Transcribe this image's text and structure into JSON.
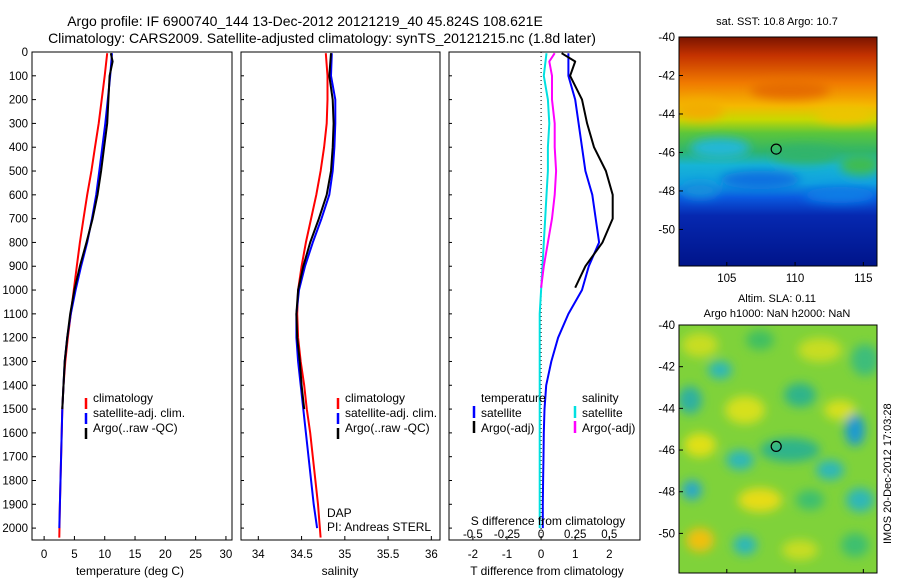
{
  "figure": {
    "title_line1": "Argo profile: IF 6900740_144 13-Dec-2012 20121219_40 45.824S 108.621E",
    "title_line2": "Climatology: CARS2009. Satellite-adjusted climatology: synTS_20121215.nc (1.8d later)",
    "side_stamp": "IMOS 20-Dec-2012 17:03:28"
  },
  "colors": {
    "climatology": "#ff0000",
    "satellite": "#0000ff",
    "argo": "#000000",
    "satellite_sal_diff": "#00e0e0",
    "argo_sal_diff": "#ff00ff"
  },
  "chart_data": [
    {
      "type": "line",
      "id": "temperature",
      "xlabel": "temperature (deg C)",
      "xlim": [
        -2,
        31
      ],
      "ylim": [
        0,
        2050
      ],
      "y_inverted": true,
      "xticks": [
        0,
        5,
        10,
        15,
        20,
        25,
        30
      ],
      "yticks": [
        0,
        100,
        200,
        300,
        400,
        500,
        600,
        700,
        800,
        900,
        1000,
        1100,
        1200,
        1300,
        1400,
        1500,
        1600,
        1700,
        1800,
        1900,
        2000
      ],
      "legend": {
        "position": "lower-right",
        "entries": [
          "climatology",
          "satellite-adj. clim.",
          "Argo(..raw -QC)"
        ]
      },
      "series": [
        {
          "name": "climatology",
          "points": [
            [
              10.4,
              5
            ],
            [
              10.0,
              100
            ],
            [
              9.5,
              200
            ],
            [
              9.0,
              300
            ],
            [
              8.4,
              400
            ],
            [
              7.8,
              500
            ],
            [
              7.1,
              600
            ],
            [
              6.5,
              700
            ],
            [
              5.9,
              800
            ],
            [
              5.4,
              900
            ],
            [
              4.9,
              1000
            ],
            [
              4.4,
              1100
            ],
            [
              3.9,
              1200
            ],
            [
              3.5,
              1300
            ],
            [
              3.2,
              1400
            ],
            [
              3.0,
              1500
            ],
            [
              2.9,
              1600
            ],
            [
              2.8,
              1700
            ],
            [
              2.7,
              1800
            ],
            [
              2.6,
              1900
            ],
            [
              2.5,
              2040
            ]
          ]
        },
        {
          "name": "satellite-adj. clim.",
          "points": [
            [
              11.2,
              5
            ],
            [
              10.9,
              100
            ],
            [
              10.5,
              200
            ],
            [
              10.1,
              300
            ],
            [
              9.6,
              400
            ],
            [
              9.1,
              500
            ],
            [
              8.6,
              600
            ],
            [
              7.9,
              700
            ],
            [
              7.1,
              800
            ],
            [
              6.1,
              900
            ],
            [
              5.2,
              1000
            ],
            [
              4.4,
              1100
            ],
            [
              3.8,
              1200
            ],
            [
              3.4,
              1300
            ],
            [
              3.2,
              1400
            ],
            [
              3.0,
              1500
            ],
            [
              2.9,
              1600
            ],
            [
              2.8,
              1700
            ],
            [
              2.7,
              1800
            ],
            [
              2.6,
              1900
            ],
            [
              2.5,
              2000
            ]
          ]
        },
        {
          "name": "Argo(..raw -QC)",
          "points": [
            [
              11.0,
              5
            ],
            [
              11.3,
              40
            ],
            [
              10.8,
              100
            ],
            [
              10.6,
              200
            ],
            [
              10.4,
              300
            ],
            [
              9.9,
              400
            ],
            [
              9.4,
              500
            ],
            [
              8.8,
              600
            ],
            [
              8.0,
              700
            ],
            [
              7.0,
              800
            ],
            [
              5.9,
              900
            ],
            [
              5.0,
              1000
            ],
            [
              4.3,
              1100
            ],
            [
              3.8,
              1200
            ],
            [
              3.4,
              1300
            ],
            [
              3.2,
              1400
            ],
            [
              3.0,
              1500
            ]
          ]
        }
      ]
    },
    {
      "type": "line",
      "id": "salinity",
      "xlabel": "salinity",
      "xlim": [
        33.8,
        36.1
      ],
      "ylim": [
        0,
        2050
      ],
      "y_inverted": true,
      "xticks": [
        34,
        34.5,
        35,
        35.5,
        36
      ],
      "legend": {
        "position": "lower-right",
        "entries": [
          "climatology",
          "satellite-adj. clim.",
          "Argo(..raw -QC)"
        ]
      },
      "annotations": [
        "DAP",
        "PI: Andreas STERL"
      ],
      "series": [
        {
          "name": "climatology",
          "points": [
            [
              34.78,
              5
            ],
            [
              34.8,
              100
            ],
            [
              34.8,
              200
            ],
            [
              34.79,
              300
            ],
            [
              34.76,
              400
            ],
            [
              34.72,
              500
            ],
            [
              34.67,
              600
            ],
            [
              34.61,
              700
            ],
            [
              34.55,
              800
            ],
            [
              34.5,
              900
            ],
            [
              34.46,
              1000
            ],
            [
              34.45,
              1100
            ],
            [
              34.46,
              1200
            ],
            [
              34.49,
              1300
            ],
            [
              34.53,
              1400
            ],
            [
              34.56,
              1500
            ],
            [
              34.6,
              1600
            ],
            [
              34.63,
              1700
            ],
            [
              34.66,
              1800
            ],
            [
              34.69,
              1900
            ],
            [
              34.72,
              2040
            ]
          ]
        },
        {
          "name": "satellite-adj. clim.",
          "points": [
            [
              34.85,
              5
            ],
            [
              34.84,
              100
            ],
            [
              34.89,
              200
            ],
            [
              34.89,
              300
            ],
            [
              34.88,
              400
            ],
            [
              34.86,
              500
            ],
            [
              34.82,
              600
            ],
            [
              34.73,
              700
            ],
            [
              34.63,
              800
            ],
            [
              34.54,
              900
            ],
            [
              34.47,
              1000
            ],
            [
              34.44,
              1100
            ],
            [
              34.44,
              1200
            ],
            [
              34.46,
              1300
            ],
            [
              34.49,
              1400
            ],
            [
              34.52,
              1500
            ],
            [
              34.55,
              1600
            ],
            [
              34.58,
              1700
            ],
            [
              34.61,
              1800
            ],
            [
              34.64,
              1900
            ],
            [
              34.68,
              2000
            ]
          ]
        },
        {
          "name": "Argo(..raw -QC)",
          "points": [
            [
              34.84,
              5
            ],
            [
              34.82,
              100
            ],
            [
              34.86,
              200
            ],
            [
              34.87,
              300
            ],
            [
              34.86,
              400
            ],
            [
              34.84,
              500
            ],
            [
              34.79,
              600
            ],
            [
              34.7,
              700
            ],
            [
              34.6,
              800
            ],
            [
              34.52,
              900
            ],
            [
              34.46,
              1000
            ],
            [
              34.44,
              1100
            ],
            [
              34.45,
              1200
            ],
            [
              34.48,
              1300
            ],
            [
              34.5,
              1400
            ],
            [
              34.53,
              1500
            ]
          ]
        }
      ]
    },
    {
      "type": "line",
      "id": "differences",
      "xlabel": "T difference from climatology",
      "top_axis_label": "S difference from climatology",
      "xlim": [
        -2.7,
        2.9
      ],
      "top_xlim": [
        -0.675,
        0.725
      ],
      "ylim": [
        0,
        2050
      ],
      "y_inverted": true,
      "xticks": [
        -2,
        -1,
        0,
        1,
        2
      ],
      "top_xticks": [
        -0.5,
        -0.25,
        0,
        0.25,
        0.5
      ],
      "legend": {
        "position": "lower-center",
        "entries": [
          "temperature",
          "satellite",
          "Argo(-adj)",
          "salinity",
          "satellite",
          "Argo(-adj)"
        ]
      },
      "series": [
        {
          "name": "satellite",
          "group": "temperature",
          "points": [
            [
              0.8,
              5
            ],
            [
              0.8,
              100
            ],
            [
              1.0,
              200
            ],
            [
              1.1,
              300
            ],
            [
              1.2,
              400
            ],
            [
              1.3,
              500
            ],
            [
              1.5,
              600
            ],
            [
              1.6,
              700
            ],
            [
              1.7,
              800
            ],
            [
              1.4,
              900
            ],
            [
              1.2,
              1000
            ],
            [
              0.8,
              1100
            ],
            [
              0.5,
              1200
            ],
            [
              0.3,
              1300
            ],
            [
              0.15,
              1400
            ],
            [
              0.1,
              1500
            ],
            [
              0.08,
              1600
            ],
            [
              0.07,
              1700
            ],
            [
              0.06,
              1800
            ],
            [
              0.05,
              1900
            ],
            [
              0.05,
              2000
            ]
          ]
        },
        {
          "name": "Argo(-adj)",
          "group": "temperature",
          "points": [
            [
              0.6,
              5
            ],
            [
              1.0,
              40
            ],
            [
              0.85,
              100
            ],
            [
              1.2,
              200
            ],
            [
              1.35,
              300
            ],
            [
              1.55,
              400
            ],
            [
              1.9,
              500
            ],
            [
              2.1,
              600
            ],
            [
              2.1,
              700
            ],
            [
              1.8,
              800
            ],
            [
              1.3,
              900
            ],
            [
              1.0,
              990
            ]
          ]
        },
        {
          "name": "satellite",
          "group": "salinity",
          "points": [
            [
              0.04,
              5
            ],
            [
              0.02,
              100
            ],
            [
              0.05,
              200
            ],
            [
              0.06,
              300
            ],
            [
              0.05,
              400
            ],
            [
              0.05,
              500
            ],
            [
              0.04,
              600
            ],
            [
              0.03,
              700
            ],
            [
              0.02,
              800
            ],
            [
              0.01,
              900
            ],
            [
              0.0,
              1000
            ],
            [
              -0.01,
              1100
            ],
            [
              -0.01,
              1200
            ],
            [
              -0.01,
              1300
            ],
            [
              -0.01,
              1400
            ],
            [
              -0.01,
              1500
            ],
            [
              -0.01,
              1600
            ],
            [
              -0.01,
              1700
            ],
            [
              -0.01,
              1800
            ],
            [
              -0.01,
              1900
            ],
            [
              -0.01,
              2000
            ]
          ]
        },
        {
          "name": "Argo(-adj)",
          "group": "salinity",
          "points": [
            [
              0.1,
              5
            ],
            [
              0.06,
              40
            ],
            [
              0.08,
              100
            ],
            [
              0.08,
              200
            ],
            [
              0.1,
              300
            ],
            [
              0.1,
              400
            ],
            [
              0.11,
              500
            ],
            [
              0.1,
              600
            ],
            [
              0.08,
              700
            ],
            [
              0.05,
              800
            ],
            [
              0.02,
              900
            ],
            [
              0.0,
              990
            ]
          ]
        }
      ]
    },
    {
      "type": "heatmap",
      "id": "sst-map",
      "title": "sat. SST: 10.8 Argo: 10.7",
      "xlim": [
        101.5,
        116
      ],
      "ylim": [
        -51.9,
        -40
      ],
      "xticks": [
        105,
        110,
        115
      ],
      "yticks": [
        -40,
        -42,
        -44,
        -46,
        -48,
        -50
      ],
      "marker": {
        "lon": 108.621,
        "lat": -45.824
      }
    },
    {
      "type": "heatmap",
      "id": "sla-map",
      "title_line1": "Altim. SLA: 0.11",
      "title_line2": "Argo h1000: NaN h2000: NaN",
      "xlim": [
        101.5,
        116
      ],
      "ylim": [
        -51.9,
        -40
      ],
      "xticks": [
        105,
        110,
        115
      ],
      "yticks": [
        -40,
        -42,
        -44,
        -46,
        -48,
        -50
      ],
      "marker": {
        "lon": 108.621,
        "lat": -45.824
      }
    }
  ]
}
